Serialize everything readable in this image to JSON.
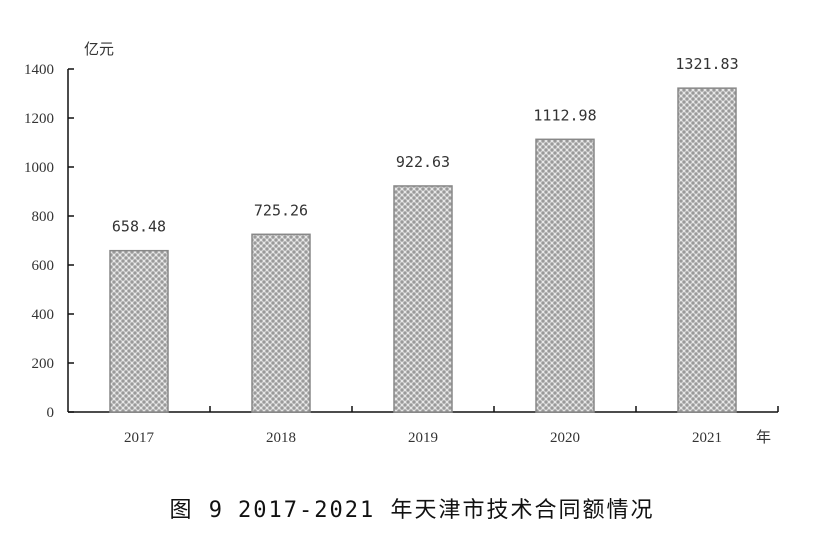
{
  "chart_data": {
    "type": "bar",
    "title": "图 9　2017-2021 年天津市技术合同额情况",
    "figure_number": "图 9",
    "caption": "2017-2021 年天津市技术合同额情况",
    "categories": [
      "2017",
      "2018",
      "2019",
      "2020",
      "2021"
    ],
    "values": [
      658.48,
      725.26,
      922.63,
      1112.98,
      1321.83
    ],
    "value_labels": [
      "658.48",
      "725.26",
      "922.63",
      "1112.98",
      "1321.83"
    ],
    "xlabel": "年",
    "ylabel": "亿元",
    "ylim": [
      0,
      1400
    ],
    "yticks": [
      0,
      200,
      400,
      600,
      800,
      1000,
      1200,
      1400
    ],
    "grid": false,
    "legend": null,
    "bar_fill": "crosshatch-gray",
    "bar_border_color": "#888888"
  }
}
